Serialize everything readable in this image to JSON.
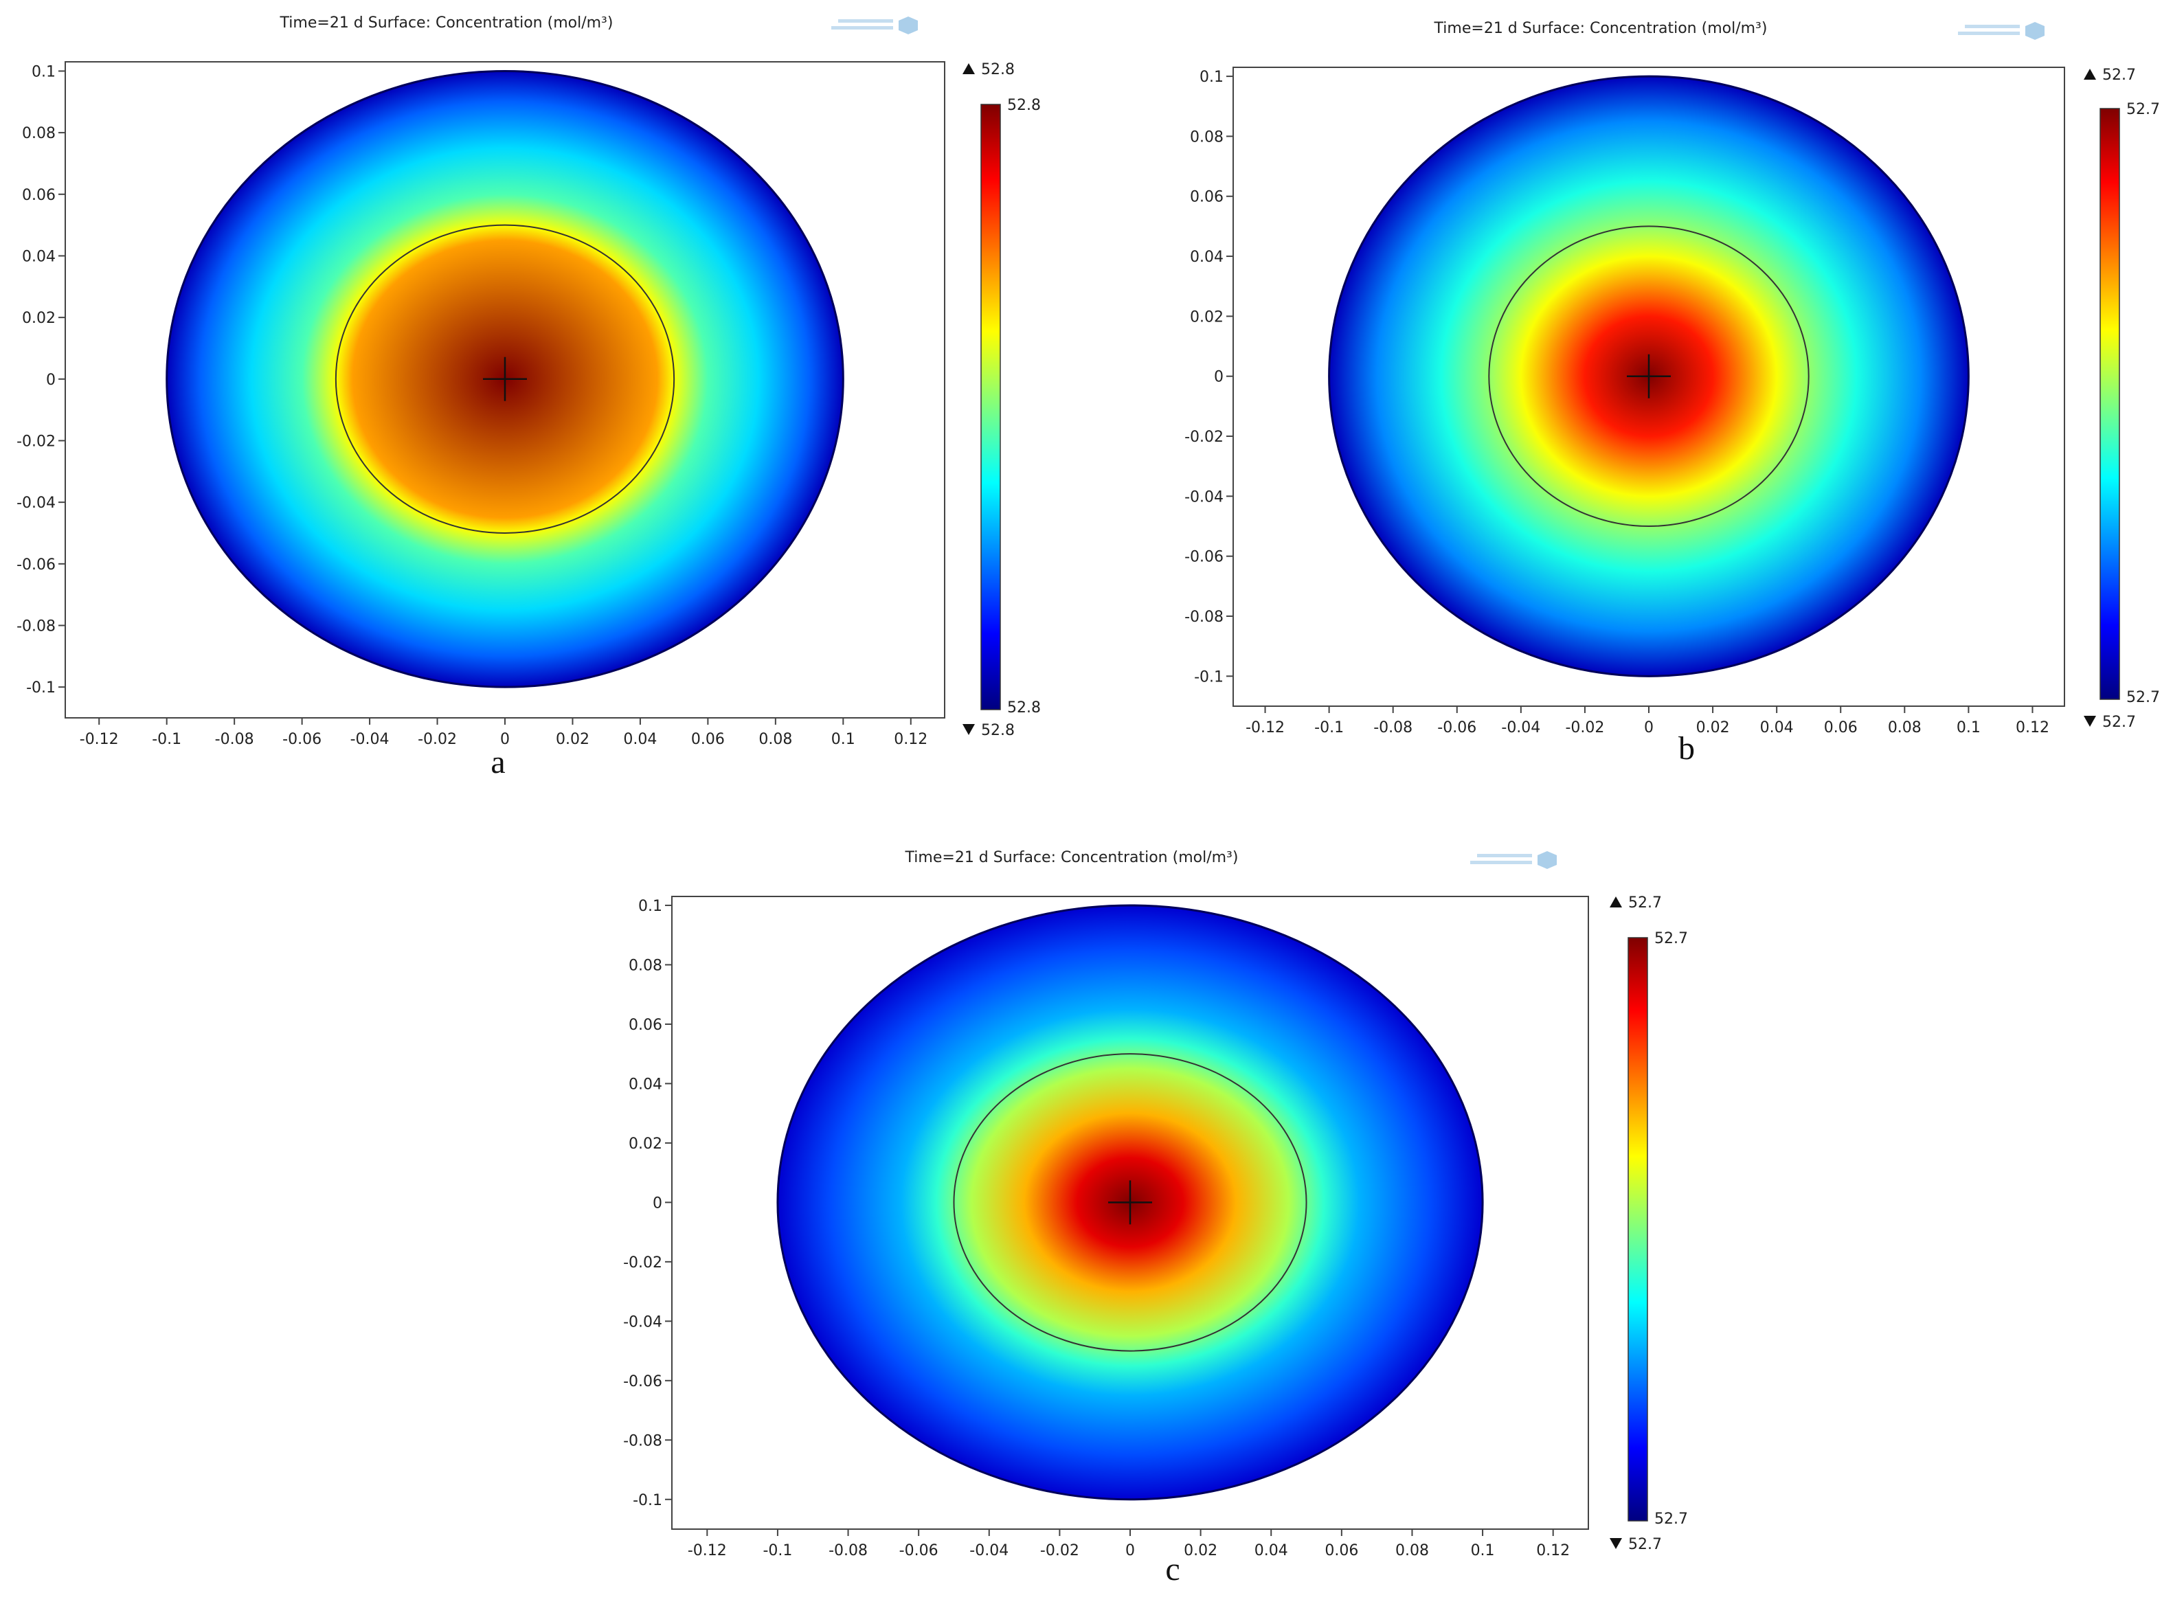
{
  "figure": {
    "watermark_color": "#9cc7e6"
  },
  "chart_data": [
    {
      "type": "heatmap",
      "panel_label": "a",
      "title": "Time=21 d   Surface: Concentration (mol/m³)",
      "xlim": [
        -0.13,
        0.13
      ],
      "ylim": [
        -0.11,
        0.103
      ],
      "x_ticks": [
        "-0.12",
        "-0.1",
        "-0.08",
        "-0.06",
        "-0.04",
        "-0.02",
        "0",
        "0.02",
        "0.04",
        "0.06",
        "0.08",
        "0.1",
        "0.12"
      ],
      "y_ticks": [
        "0.1",
        "0.08",
        "0.06",
        "0.04",
        "0.02",
        "0",
        "-0.02",
        "-0.04",
        "-0.06",
        "-0.08",
        "-0.1"
      ],
      "colorbar": {
        "max_label": "52.8",
        "min_label": "52.8",
        "max_marker": "52.8",
        "min_marker": "52.8"
      },
      "colormap": [
        "#00007f",
        "#0000ff",
        "#007fff",
        "#00ffff",
        "#7fff7f",
        "#ffff00",
        "#ff7f00",
        "#ff0000",
        "#7f0000"
      ],
      "domain_outer_radius": 0.1,
      "inner_circle_radius": 0.05,
      "profile": [
        {
          "r": 0.0,
          "level": 1.0
        },
        {
          "r": 0.045,
          "level": 0.72
        },
        {
          "r": 0.05,
          "level": 0.62
        },
        {
          "r": 0.06,
          "level": 0.45
        },
        {
          "r": 0.075,
          "level": 0.34
        },
        {
          "r": 0.09,
          "level": 0.22
        },
        {
          "r": 0.1,
          "level": 0.06
        }
      ],
      "grid": false
    },
    {
      "type": "heatmap",
      "panel_label": "b",
      "title": "Time=21 d   Surface: Concentration (mol/m³)",
      "xlim": [
        -0.13,
        0.13
      ],
      "ylim": [
        -0.11,
        0.103
      ],
      "x_ticks": [
        "-0.12",
        "-0.1",
        "-0.08",
        "-0.06",
        "-0.04",
        "-0.02",
        "0",
        "0.02",
        "0.04",
        "0.06",
        "0.08",
        "0.1",
        "0.12"
      ],
      "y_ticks": [
        "0.1",
        "0.08",
        "0.06",
        "0.04",
        "0.02",
        "0",
        "-0.02",
        "-0.04",
        "-0.06",
        "-0.08",
        "-0.1"
      ],
      "colorbar": {
        "max_label": "52.7",
        "min_label": "52.7",
        "max_marker": "52.7",
        "min_marker": "52.7"
      },
      "colormap": [
        "#00007f",
        "#0000ff",
        "#007fff",
        "#00ffff",
        "#7fff7f",
        "#ffff00",
        "#ff7f00",
        "#ff0000",
        "#7f0000"
      ],
      "domain_outer_radius": 0.1,
      "inner_circle_radius": 0.05,
      "profile": [
        {
          "r": 0.0,
          "level": 1.0
        },
        {
          "r": 0.02,
          "level": 0.85
        },
        {
          "r": 0.04,
          "level": 0.62
        },
        {
          "r": 0.05,
          "level": 0.52
        },
        {
          "r": 0.065,
          "level": 0.4
        },
        {
          "r": 0.085,
          "level": 0.26
        },
        {
          "r": 0.1,
          "level": 0.06
        }
      ],
      "grid": false
    },
    {
      "type": "heatmap",
      "panel_label": "c",
      "title": "Time=21 d   Surface: Concentration (mol/m³)",
      "xlim": [
        -0.13,
        0.13
      ],
      "ylim": [
        -0.11,
        0.103
      ],
      "x_ticks": [
        "-0.12",
        "-0.1",
        "-0.08",
        "-0.06",
        "-0.04",
        "-0.02",
        "0",
        "0.02",
        "0.04",
        "0.06",
        "0.08",
        "0.1",
        "0.12"
      ],
      "y_ticks": [
        "0.1",
        "0.08",
        "0.06",
        "0.04",
        "0.02",
        "0",
        "-0.02",
        "-0.04",
        "-0.06",
        "-0.08",
        "-0.1"
      ],
      "colorbar": {
        "max_label": "52.7",
        "min_label": "52.7",
        "max_marker": "52.7",
        "min_marker": "52.7"
      },
      "colormap": [
        "#00007f",
        "#0000ff",
        "#007fff",
        "#00ffff",
        "#7fff7f",
        "#ffff00",
        "#ff7f00",
        "#ff0000",
        "#7f0000"
      ],
      "domain_outer_radius": 0.1,
      "inner_circle_radius": 0.05,
      "profile": [
        {
          "r": 0.0,
          "level": 1.0
        },
        {
          "r": 0.015,
          "level": 0.9
        },
        {
          "r": 0.03,
          "level": 0.7
        },
        {
          "r": 0.045,
          "level": 0.55
        },
        {
          "r": 0.055,
          "level": 0.42
        },
        {
          "r": 0.065,
          "level": 0.3
        },
        {
          "r": 0.085,
          "level": 0.2
        },
        {
          "r": 0.1,
          "level": 0.08
        }
      ],
      "grid": false
    }
  ]
}
